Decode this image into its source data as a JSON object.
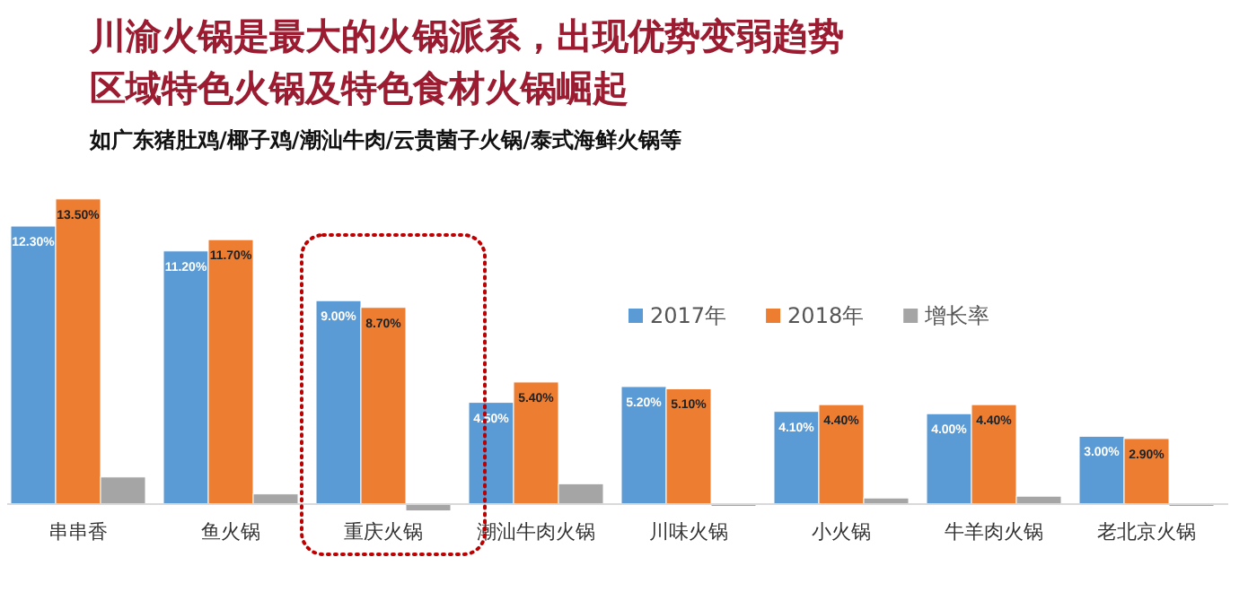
{
  "chart_data": {
    "type": "bar",
    "title": "川渝火锅是最大的火锅派系，出现优势变弱趋势",
    "subtitle": "区域特色火锅及特色食材火锅崛起",
    "annotations": [
      "如广东猪肚鸡/椰子鸡/潮汕牛肉/云贵菌子火锅/泰式海鲜火锅等"
    ],
    "categories": [
      "串串香",
      "鱼火锅",
      "重庆火锅",
      "潮汕牛肉火锅",
      "川味火锅",
      "小火锅",
      "牛羊肉火锅",
      "老北京火锅"
    ],
    "series": [
      {
        "name": "2017年",
        "color": "#5b9bd5",
        "values": [
          12.3,
          11.2,
          9.0,
          4.5,
          5.2,
          4.1,
          4.0,
          3.0
        ],
        "value_labels": [
          "12.30%",
          "11.20%",
          "9.00%",
          "4.50%",
          "5.20%",
          "4.10%",
          "4.00%",
          "3.00%"
        ]
      },
      {
        "name": "2018年",
        "color": "#ed7d31",
        "values": [
          13.5,
          11.7,
          8.7,
          5.4,
          5.1,
          4.4,
          4.4,
          2.9
        ],
        "value_labels": [
          "13.50%",
          "11.70%",
          "8.70%",
          "5.40%",
          "5.10%",
          "4.40%",
          "4.40%",
          "2.90%"
        ]
      },
      {
        "name": "增长率",
        "color": "#a5a5a5",
        "values": [
          1.2,
          0.45,
          -0.3,
          0.9,
          -0.1,
          0.27,
          0.35,
          -0.1
        ]
      }
    ],
    "legend": "top right",
    "grid": false
  }
}
